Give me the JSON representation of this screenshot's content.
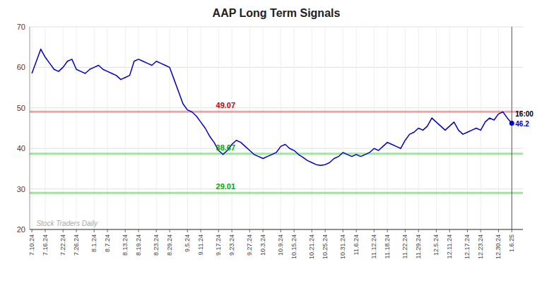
{
  "chart_data": {
    "type": "line",
    "title": "AAP Long Term Signals",
    "color": "#0000cc",
    "ylim": [
      20,
      70
    ],
    "yticks": [
      20,
      30,
      40,
      50,
      60,
      70
    ],
    "grid": true,
    "categories": [
      "7.10.24",
      null,
      null,
      "7.16.24",
      null,
      null,
      null,
      "7.22.24",
      null,
      null,
      "7.26.24",
      null,
      null,
      null,
      "8.1.24",
      null,
      null,
      "8.7.24",
      null,
      null,
      null,
      "8.13.24",
      null,
      null,
      "8.19.24",
      null,
      null,
      null,
      "8.23.24",
      null,
      null,
      "8.29.24",
      null,
      null,
      null,
      "9.5.24",
      null,
      null,
      "9.11.24",
      null,
      null,
      null,
      "9.17.24",
      null,
      null,
      "9.23.24",
      null,
      null,
      null,
      "9.27.24",
      null,
      null,
      "10.3.24",
      null,
      null,
      null,
      "10.9.24",
      null,
      null,
      "10.15.24",
      null,
      null,
      null,
      "10.21.24",
      null,
      null,
      "10.25.24",
      null,
      null,
      null,
      "10.31.24",
      null,
      null,
      "11.6.24",
      null,
      null,
      null,
      "11.12.24",
      null,
      null,
      "11.18.24",
      null,
      null,
      null,
      "11.22.24",
      null,
      null,
      "11.29.24",
      null,
      null,
      null,
      "12.5.24",
      null,
      null,
      "12.11.24",
      null,
      null,
      null,
      "12.17.24",
      null,
      null,
      "12.23.24",
      null,
      null,
      null,
      "12.30.24",
      null,
      null,
      "1.6.25"
    ],
    "values": [
      58.5,
      61.5,
      64.5,
      62.5,
      61.0,
      59.5,
      59.0,
      60.0,
      61.5,
      62.0,
      59.5,
      59.0,
      58.5,
      59.5,
      60.0,
      60.5,
      59.5,
      59.0,
      58.5,
      58.0,
      57.0,
      57.5,
      58.0,
      61.5,
      62.0,
      61.5,
      61.0,
      60.5,
      61.5,
      61.0,
      60.5,
      60.0,
      57.0,
      54.0,
      51.0,
      49.5,
      49.0,
      48.0,
      46.5,
      45.0,
      43.0,
      41.5,
      39.5,
      38.5,
      39.5,
      41.0,
      42.0,
      41.5,
      40.5,
      39.5,
      38.5,
      38.0,
      37.5,
      38.0,
      38.5,
      39.0,
      40.5,
      41.0,
      40.0,
      39.5,
      38.5,
      37.8,
      37.0,
      36.5,
      36.0,
      35.8,
      36.0,
      36.5,
      37.5,
      38.0,
      39.0,
      38.5,
      38.0,
      38.5,
      38.0,
      38.5,
      39.0,
      40.0,
      39.5,
      40.5,
      41.5,
      41.0,
      40.5,
      40.0,
      42.0,
      43.5,
      44.0,
      45.0,
      44.5,
      45.5,
      47.5,
      46.5,
      45.5,
      44.5,
      45.5,
      46.5,
      44.5,
      43.5,
      44.0,
      44.5,
      45.0,
      44.5,
      46.5,
      47.5,
      47.0,
      48.5,
      49.0,
      47.5,
      46.2
    ],
    "reference_lines": [
      {
        "value": 49.07,
        "label": "49.07",
        "color": "#cc0000"
      },
      {
        "value": 38.67,
        "label": "38.67",
        "color": "#00aa00"
      },
      {
        "value": 29.01,
        "label": "29.01",
        "color": "#00aa00"
      }
    ],
    "last_point": {
      "value": 46.2,
      "label": "46.2",
      "time_label": "16:00"
    },
    "watermark": "Stock Traders Daily"
  }
}
